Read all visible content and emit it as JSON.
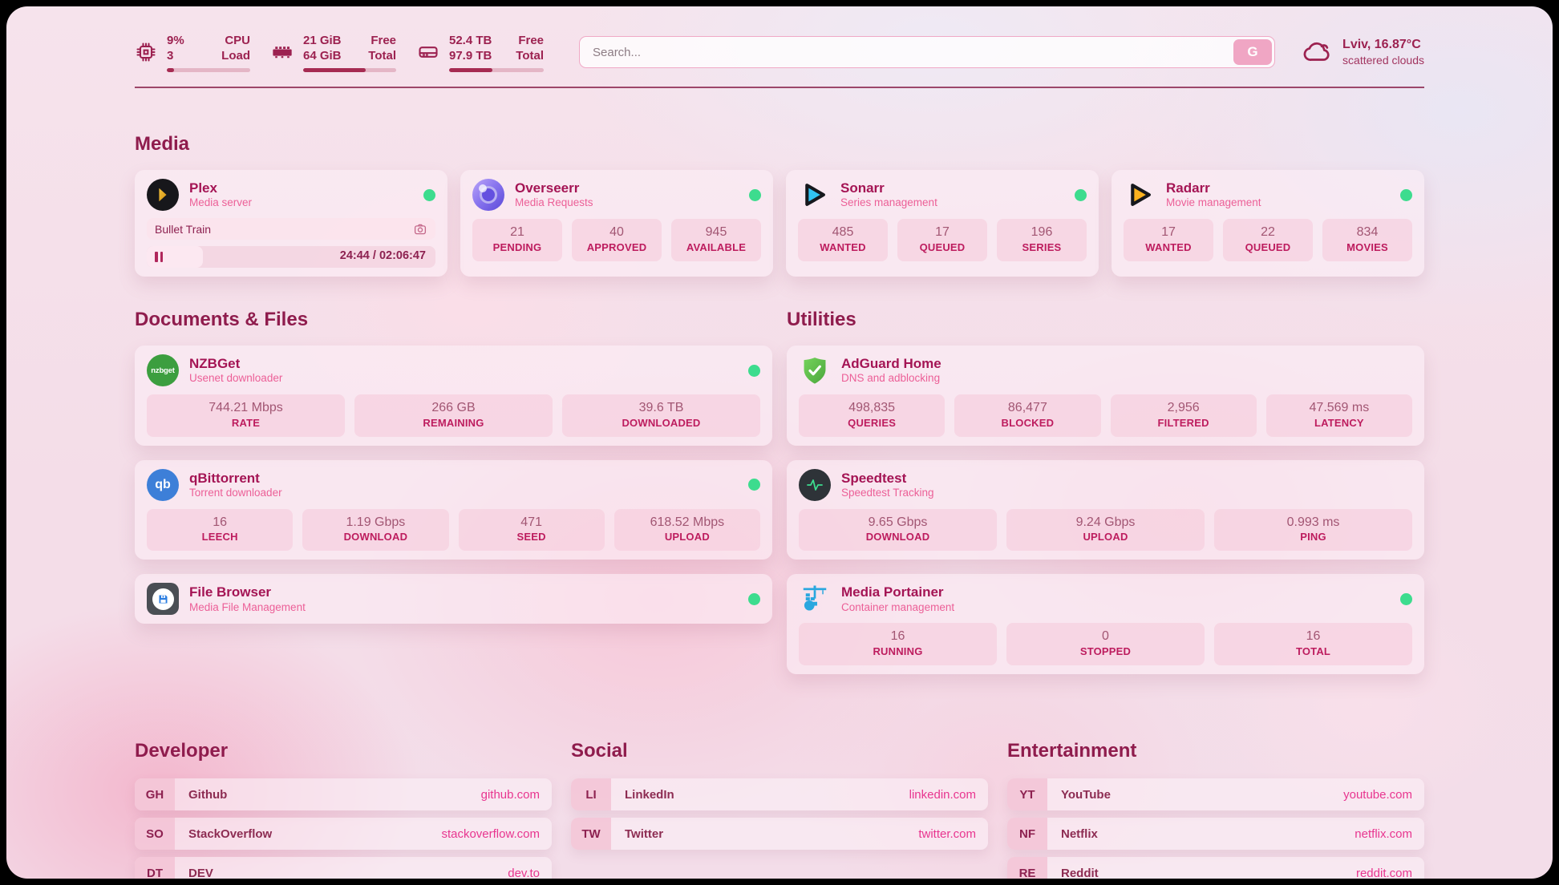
{
  "colors": {
    "accent": "#9c2150",
    "link_pink": "#e8358f",
    "status_online": "#3ddc8e",
    "bar_fill": "#a62b52"
  },
  "header": {
    "cpu": {
      "value": "9%",
      "sub": "3",
      "label_top": "CPU",
      "label_bottom": "Load",
      "progress_pct": 9
    },
    "memory": {
      "value": "21 GiB",
      "sub": "64 GiB",
      "label_top": "Free",
      "label_bottom": "Total",
      "progress_pct": 67
    },
    "disk": {
      "value": "52.4 TB",
      "sub": "97.9 TB",
      "label_top": "Free",
      "label_bottom": "Total",
      "progress_pct": 46
    },
    "search": {
      "placeholder": "Search...",
      "button_label": "G"
    },
    "weather": {
      "location": "Lviv, 16.87°C",
      "condition": "scattered clouds"
    }
  },
  "media": {
    "title": "Media",
    "plex": {
      "name": "Plex",
      "desc": "Media server",
      "online": true,
      "now_playing": {
        "title": "Bullet Train",
        "time": "24:44 / 02:06:47",
        "progress_pct": 19.5
      }
    },
    "overseerr": {
      "name": "Overseerr",
      "desc": "Media Requests",
      "online": true,
      "stats": [
        {
          "value": "21",
          "label": "PENDING"
        },
        {
          "value": "40",
          "label": "APPROVED"
        },
        {
          "value": "945",
          "label": "AVAILABLE"
        }
      ]
    },
    "sonarr": {
      "name": "Sonarr",
      "desc": "Series management",
      "online": true,
      "stats": [
        {
          "value": "485",
          "label": "WANTED"
        },
        {
          "value": "17",
          "label": "QUEUED"
        },
        {
          "value": "196",
          "label": "SERIES"
        }
      ]
    },
    "radarr": {
      "name": "Radarr",
      "desc": "Movie management",
      "online": true,
      "stats": [
        {
          "value": "17",
          "label": "WANTED"
        },
        {
          "value": "22",
          "label": "QUEUED"
        },
        {
          "value": "834",
          "label": "MOVIES"
        }
      ]
    }
  },
  "documents": {
    "title": "Documents & Files",
    "nzbget": {
      "name": "NZBGet",
      "desc": "Usenet downloader",
      "online": true,
      "logo_text": "nzbget",
      "stats": [
        {
          "value": "744.21 Mbps",
          "label": "RATE"
        },
        {
          "value": "266 GB",
          "label": "REMAINING"
        },
        {
          "value": "39.6 TB",
          "label": "DOWNLOADED"
        }
      ]
    },
    "qbittorrent": {
      "name": "qBittorrent",
      "desc": "Torrent downloader",
      "online": true,
      "logo_text": "qb",
      "stats": [
        {
          "value": "16",
          "label": "LEECH"
        },
        {
          "value": "1.19 Gbps",
          "label": "DOWNLOAD"
        },
        {
          "value": "471",
          "label": "SEED"
        },
        {
          "value": "618.52 Mbps",
          "label": "UPLOAD"
        }
      ]
    },
    "filebrowser": {
      "name": "File Browser",
      "desc": "Media File Management",
      "online": true
    }
  },
  "utilities": {
    "title": "Utilities",
    "adguard": {
      "name": "AdGuard Home",
      "desc": "DNS and adblocking",
      "online": false,
      "stats": [
        {
          "value": "498,835",
          "label": "QUERIES"
        },
        {
          "value": "86,477",
          "label": "BLOCKED"
        },
        {
          "value": "2,956",
          "label": "FILTERED"
        },
        {
          "value": "47.569 ms",
          "label": "LATENCY"
        }
      ]
    },
    "speedtest": {
      "name": "Speedtest",
      "desc": "Speedtest Tracking",
      "online": false,
      "stats": [
        {
          "value": "9.65 Gbps",
          "label": "DOWNLOAD"
        },
        {
          "value": "9.24 Gbps",
          "label": "UPLOAD"
        },
        {
          "value": "0.993 ms",
          "label": "PING"
        }
      ]
    },
    "portainer": {
      "name": "Media Portainer",
      "desc": "Container management",
      "online": true,
      "stats": [
        {
          "value": "16",
          "label": "RUNNING"
        },
        {
          "value": "0",
          "label": "STOPPED"
        },
        {
          "value": "16",
          "label": "TOTAL"
        }
      ]
    }
  },
  "links": {
    "developer": {
      "title": "Developer",
      "items": [
        {
          "abbr": "GH",
          "name": "Github",
          "url": "github.com"
        },
        {
          "abbr": "SO",
          "name": "StackOverflow",
          "url": "stackoverflow.com"
        },
        {
          "abbr": "DT",
          "name": "DEV",
          "url": "dev.to"
        }
      ]
    },
    "social": {
      "title": "Social",
      "items": [
        {
          "abbr": "LI",
          "name": "LinkedIn",
          "url": "linkedin.com"
        },
        {
          "abbr": "TW",
          "name": "Twitter",
          "url": "twitter.com"
        }
      ]
    },
    "entertainment": {
      "title": "Entertainment",
      "items": [
        {
          "abbr": "YT",
          "name": "YouTube",
          "url": "youtube.com"
        },
        {
          "abbr": "NF",
          "name": "Netflix",
          "url": "netflix.com"
        },
        {
          "abbr": "RE",
          "name": "Reddit",
          "url": "reddit.com"
        }
      ]
    }
  }
}
